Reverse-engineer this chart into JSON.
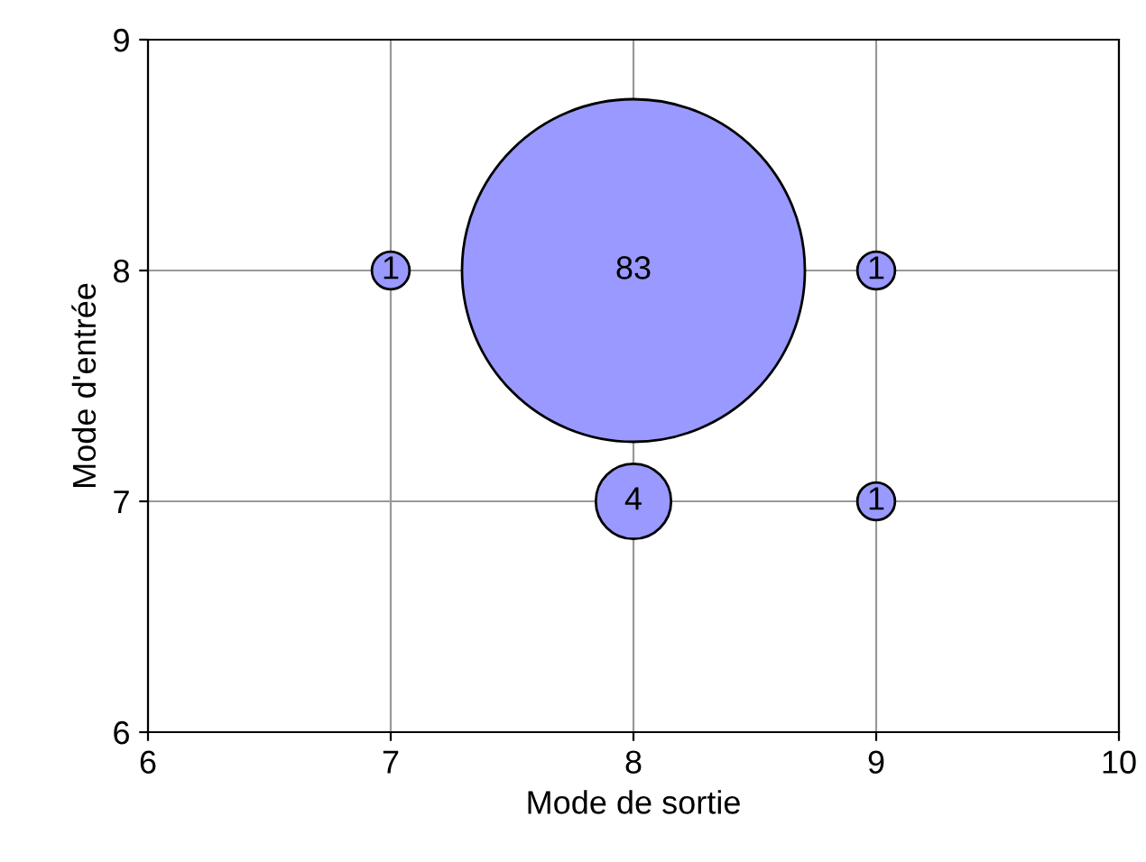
{
  "chart_data": {
    "type": "bubble",
    "xlabel": "Mode de sortie",
    "ylabel": "Mode d'entrée",
    "x": [
      7,
      8,
      9,
      8,
      9
    ],
    "values": [
      8,
      8,
      8,
      7,
      7
    ],
    "sizes": [
      1,
      83,
      1,
      4,
      1
    ],
    "value_labels": [
      "1",
      "83",
      "1",
      "4",
      "1"
    ],
    "color": "#9999ff",
    "xlim": [
      6,
      10
    ],
    "xticks": [
      6,
      7,
      8,
      9,
      10
    ],
    "ylim": [
      6,
      9
    ],
    "yticks": [
      6,
      7,
      8,
      9
    ],
    "grid": true,
    "legend": false
  }
}
